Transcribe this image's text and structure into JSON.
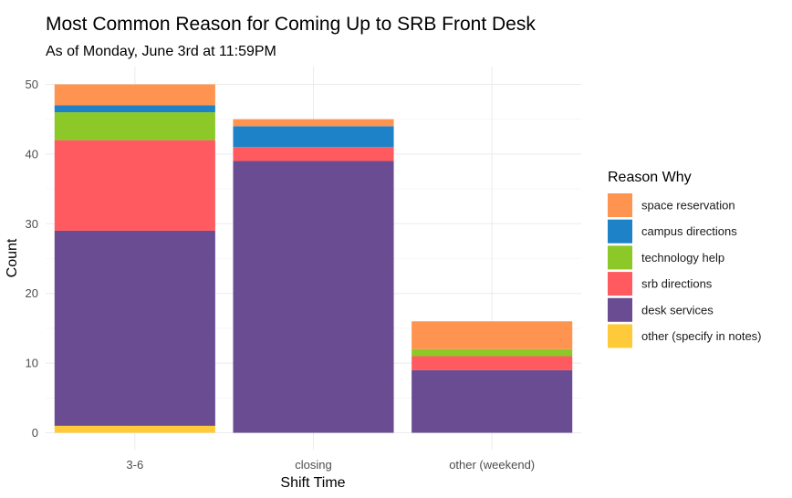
{
  "chart_data": {
    "type": "bar",
    "stacked": true,
    "title": "Most Common Reason for Coming Up to SRB Front Desk",
    "subtitle": "As of Monday, June 3rd at 11:59PM",
    "xlabel": "Shift Time",
    "ylabel": "Count",
    "categories": [
      "3-6",
      "closing",
      "other (weekend)"
    ],
    "ylim": [
      0,
      50
    ],
    "yticks": [
      0,
      10,
      20,
      30,
      40,
      50
    ],
    "grid": true,
    "legend": {
      "title": "Reason Why",
      "position": "right"
    },
    "series": [
      {
        "name": "space reservation",
        "color": "#FF9450",
        "values": [
          3,
          1,
          4
        ]
      },
      {
        "name": "campus directions",
        "color": "#1E82C8",
        "values": [
          1,
          3,
          0
        ]
      },
      {
        "name": "technology help",
        "color": "#8CC828",
        "values": [
          4,
          0,
          1
        ]
      },
      {
        "name": "srb directions",
        "color": "#FF5A5F",
        "values": [
          13,
          2,
          2
        ]
      },
      {
        "name": "desk services",
        "color": "#6A4C93",
        "values": [
          28,
          39,
          9
        ]
      },
      {
        "name": "other (specify in notes)",
        "color": "#FFCA3A",
        "values": [
          1,
          0,
          0
        ]
      }
    ]
  }
}
